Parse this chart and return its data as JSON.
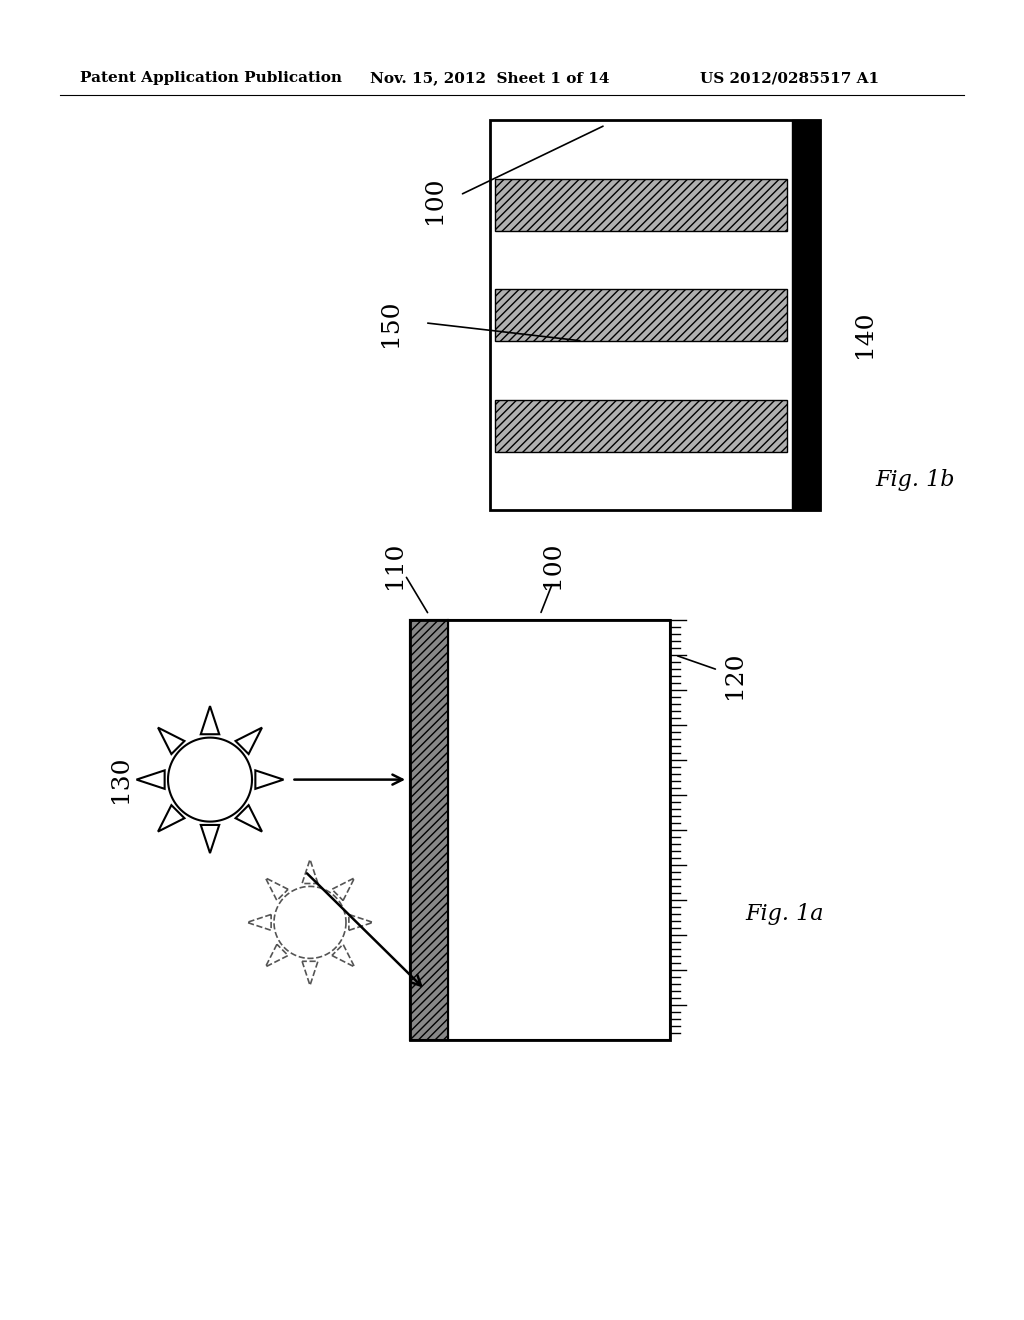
{
  "bg_color": "#ffffff",
  "header_left": "Patent Application Publication",
  "header_mid": "Nov. 15, 2012  Sheet 1 of 14",
  "header_right": "US 2012/0285517 A1"
}
